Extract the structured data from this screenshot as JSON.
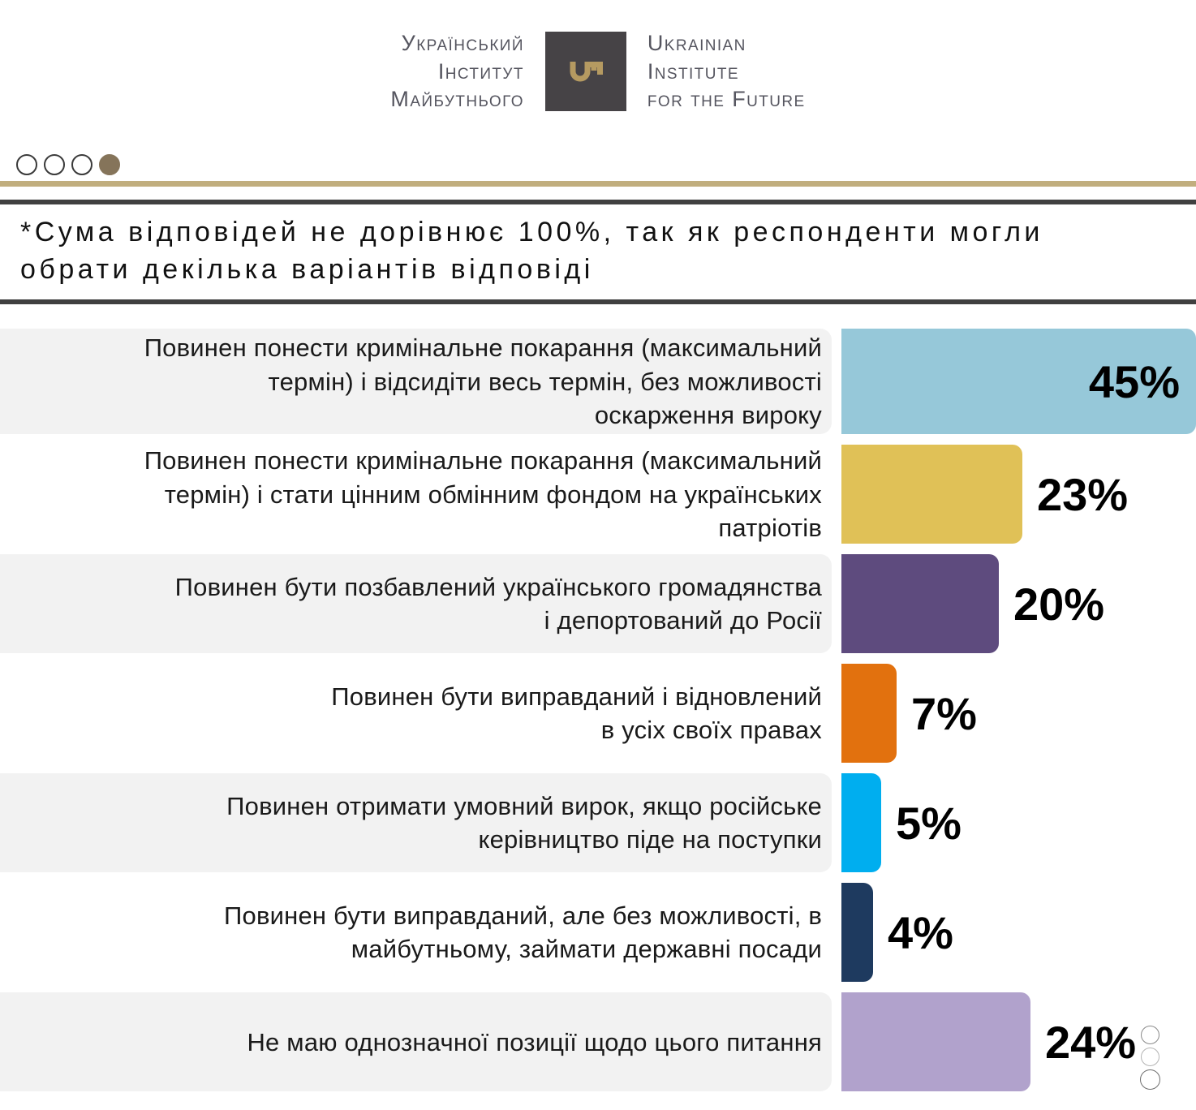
{
  "header": {
    "logo_uk": "Український\nІнститут\nМайбутнього",
    "logo_en": "Ukrainian\nInstitute\nfor the Future",
    "logo_box_color": "#464346",
    "key_color": "#b59a61"
  },
  "pagination": {
    "total_dots": 4,
    "active_index": 3,
    "active_color": "#85745a"
  },
  "note": "*Сума відповідей не дорівнює 100%, так як респонденти могли\nобрати декілька варіантів відповіді",
  "chart_data": {
    "type": "bar",
    "orientation": "horizontal",
    "unit": "%",
    "xlim": [
      0,
      45
    ],
    "grid": false,
    "legend": false,
    "categories": [
      "Повинен понести кримінальне покарання (максимальний\nтермін) і відсидіти весь термін, без можливості\nоскарження вироку",
      "Повинен понести кримінальне покарання (максимальний\nтермін) і стати цінним обмінним фондом на українських\nпатріотів",
      "Повинен бути позбавлений українського громадянства\nі депортований до Росії",
      "Повинен бути виправданий і відновлений\nв усіх своїх правах",
      "Повинен отримати умовний вирок, якщо російське\nкерівництво піде на поступки",
      "Повинен бути виправданий, але без можливості, в\nмайбутньому, займати державні посади",
      "Не маю однозначної позиції щодо цього питання"
    ],
    "values": [
      45,
      23,
      20,
      7,
      5,
      4,
      24
    ],
    "value_labels": [
      "45%",
      "23%",
      "20%",
      "7%",
      "5%",
      "4%",
      "24%"
    ],
    "colors": [
      "#96c8d9",
      "#e0c157",
      "#5e4b7e",
      "#e2710e",
      "#00aeef",
      "#1e3a5f",
      "#b1a2cc"
    ]
  },
  "decor": {
    "gold_line_color": "#c1ae7e",
    "dark_line_color": "#404040",
    "row_alt_bg": "#f2f2f2"
  }
}
